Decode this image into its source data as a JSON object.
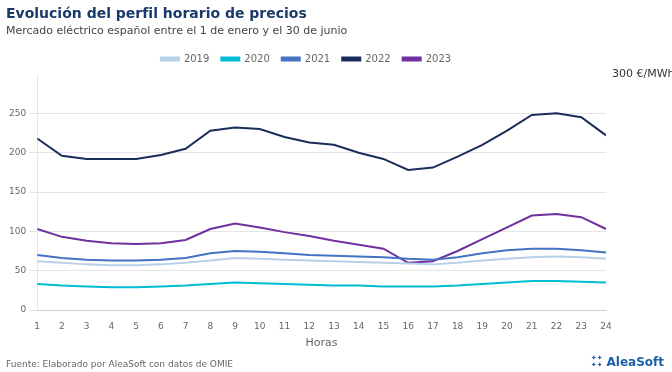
{
  "chart_data": {
    "type": "line",
    "title": "Evolución del perfil horario de precios",
    "subtitle": "Mercado eléctrico español entre el 1 de enero y el 30 de junio",
    "xlabel": "Horas",
    "annotations": [
      "300 €/MWh",
      "Fuente: Elaborado por AleaSoft con datos de OMIE",
      "✦✦\n✦✦",
      "AleaSoft"
    ],
    "x": [
      1,
      2,
      3,
      4,
      5,
      6,
      7,
      8,
      9,
      10,
      11,
      12,
      13,
      14,
      15,
      16,
      17,
      18,
      19,
      20,
      21,
      22,
      23,
      24
    ],
    "series": [
      {
        "name": "2019",
        "color": "#b8cfe8",
        "values": [
          62,
          60,
          58,
          57,
          57,
          58,
          60,
          63,
          66,
          65,
          64,
          63,
          62,
          61,
          60,
          59,
          58,
          60,
          63,
          65,
          67,
          68,
          67,
          65
        ]
      },
      {
        "name": "2020",
        "color": "#00bcd4",
        "values": [
          33,
          31,
          30,
          29,
          29,
          30,
          31,
          33,
          35,
          34,
          33,
          32,
          31,
          31,
          30,
          30,
          30,
          31,
          33,
          35,
          37,
          37,
          36,
          35
        ]
      },
      {
        "name": "2021",
        "color": "#4472c4",
        "values": [
          70,
          66,
          64,
          63,
          63,
          64,
          66,
          72,
          75,
          74,
          72,
          70,
          69,
          68,
          67,
          65,
          64,
          67,
          72,
          76,
          78,
          78,
          76,
          73
        ]
      },
      {
        "name": "2022",
        "color": "#1a2e5a",
        "values": [
          218,
          196,
          192,
          192,
          192,
          197,
          205,
          228,
          232,
          230,
          220,
          213,
          210,
          200,
          192,
          178,
          181,
          195,
          210,
          228,
          248,
          250,
          245,
          222
        ]
      },
      {
        "name": "2023",
        "color": "#7030a0",
        "values": [
          103,
          93,
          88,
          85,
          84,
          85,
          89,
          103,
          110,
          105,
          99,
          94,
          88,
          83,
          78,
          60,
          62,
          75,
          90,
          105,
          120,
          122,
          118,
          103
        ]
      }
    ],
    "xlim": [
      1,
      24
    ],
    "xticks": [
      1,
      2,
      3,
      4,
      5,
      6,
      7,
      8,
      9,
      10,
      11,
      12,
      13,
      14,
      15,
      16,
      17,
      18,
      19,
      20,
      21,
      22,
      23,
      24
    ],
    "ylim": [
      0,
      300
    ],
    "yticks": [
      0,
      50,
      100,
      150,
      200,
      250
    ],
    "grid": true,
    "legend": "top"
  }
}
